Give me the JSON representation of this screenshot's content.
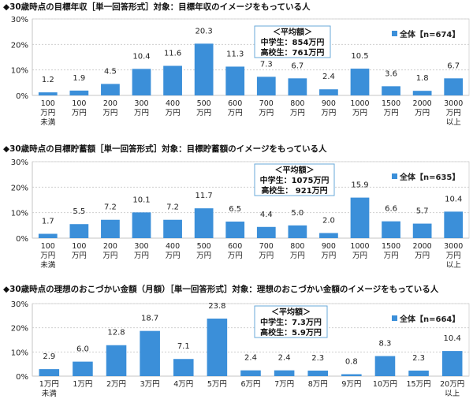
{
  "colors": {
    "bar": "#3b8fd9",
    "avg_box_border": "#6aaad9",
    "grid": "#cfcfcf",
    "axis": "#999999"
  },
  "chart_data": [
    {
      "type": "bar",
      "title": "◆30歳時点の目標年収［単一回答形式］対象：目標年収のイメージをもっている人",
      "legend": "全体【n=674】",
      "legend_position": "top-right",
      "avg_box": [
        "＜平均額＞",
        "中学生：854万円",
        "高校生：761万円"
      ],
      "categories": [
        [
          "100",
          "万円",
          "未満"
        ],
        [
          "100",
          "万円"
        ],
        [
          "200",
          "万円"
        ],
        [
          "300",
          "万円"
        ],
        [
          "400",
          "万円"
        ],
        [
          "500",
          "万円"
        ],
        [
          "600",
          "万円"
        ],
        [
          "700",
          "万円"
        ],
        [
          "800",
          "万円"
        ],
        [
          "900",
          "万円"
        ],
        [
          "1000",
          "万円"
        ],
        [
          "1500",
          "万円"
        ],
        [
          "2000",
          "万円"
        ],
        [
          "3000",
          "万円",
          "以上"
        ]
      ],
      "values": [
        1.2,
        1.9,
        4.5,
        10.4,
        11.6,
        20.3,
        11.3,
        7.3,
        6.7,
        2.4,
        10.5,
        3.6,
        1.8,
        6.7
      ],
      "yticks": [
        "0%",
        "10%",
        "20%",
        "30%"
      ],
      "ylim": [
        0,
        30
      ],
      "grid": true
    },
    {
      "type": "bar",
      "title": "◆30歳時点の目標貯蓄額［単一回答形式］対象：目標貯蓄額のイメージをもっている人",
      "legend": "全体【n=635】",
      "legend_position": "top-right",
      "avg_box": [
        "＜平均額＞",
        "中学生：1075万円",
        "高校生：  921万円"
      ],
      "categories": [
        [
          "100",
          "万円",
          "未満"
        ],
        [
          "100",
          "万円"
        ],
        [
          "200",
          "万円"
        ],
        [
          "300",
          "万円"
        ],
        [
          "400",
          "万円"
        ],
        [
          "500",
          "万円"
        ],
        [
          "600",
          "万円"
        ],
        [
          "700",
          "万円"
        ],
        [
          "800",
          "万円"
        ],
        [
          "900",
          "万円"
        ],
        [
          "1000",
          "万円"
        ],
        [
          "1500",
          "万円"
        ],
        [
          "2000",
          "万円"
        ],
        [
          "3000",
          "万円",
          "以上"
        ]
      ],
      "values": [
        1.7,
        5.5,
        7.2,
        10.1,
        7.2,
        11.7,
        6.5,
        4.4,
        5.0,
        2.0,
        15.9,
        6.6,
        5.7,
        10.4
      ],
      "yticks": [
        "0%",
        "10%",
        "20%",
        "30%"
      ],
      "ylim": [
        0,
        30
      ],
      "grid": true
    },
    {
      "type": "bar",
      "title": "◆30歳時点の理想のおこづかい金額（月額）［単一回答形式］対象：理想のおこづかい金額のイメージをもっている人",
      "legend": "全体【n=664】",
      "legend_position": "top-right",
      "avg_box": [
        "＜平均額＞",
        "中学生：7.3万円",
        "高校生：5.9万円"
      ],
      "categories": [
        [
          "1万円",
          "未満"
        ],
        [
          "1万円"
        ],
        [
          "2万円"
        ],
        [
          "3万円"
        ],
        [
          "4万円"
        ],
        [
          "5万円"
        ],
        [
          "6万円"
        ],
        [
          "7万円"
        ],
        [
          "8万円"
        ],
        [
          "9万円"
        ],
        [
          "10万円"
        ],
        [
          "15万円"
        ],
        [
          "20万円",
          "以上"
        ]
      ],
      "values": [
        2.9,
        6.0,
        12.8,
        18.7,
        7.1,
        23.8,
        2.4,
        2.4,
        2.3,
        0.8,
        8.3,
        2.3,
        10.4
      ],
      "yticks": [
        "0%",
        "10%",
        "20%",
        "30%"
      ],
      "ylim": [
        0,
        30
      ],
      "grid": true
    }
  ]
}
